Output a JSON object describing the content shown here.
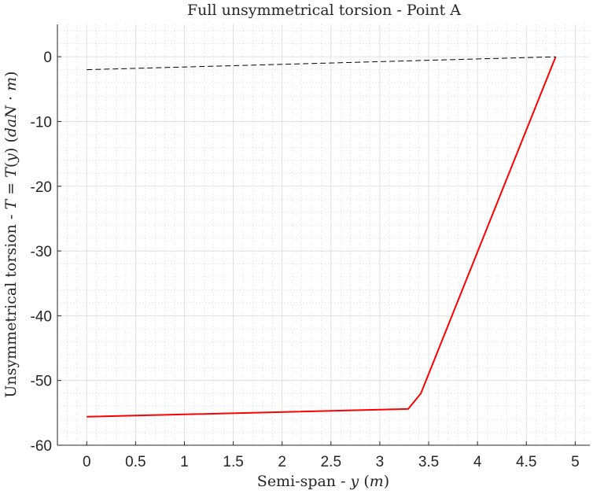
{
  "chart_data": {
    "type": "line",
    "title": "Full unsymmetrical torsion - Point A",
    "xlabel": "Semi-span - y (m)",
    "ylabel": "Unsymmetrical torsion - T = T(y) (daN · m)",
    "xlim": [
      -0.3,
      5.15
    ],
    "ylim": [
      -60,
      5
    ],
    "xticks": [
      0,
      0.5,
      1,
      1.5,
      2,
      2.5,
      3,
      3.5,
      4,
      4.5,
      5
    ],
    "xtick_labels": [
      "0",
      "0.5",
      "1",
      "1.5",
      "2",
      "2.5",
      "3",
      "3.5",
      "4",
      "4.5",
      "5"
    ],
    "yticks": [
      0,
      -10,
      -20,
      -30,
      -40,
      -50,
      -60
    ],
    "ytick_labels": [
      "0",
      "-10",
      "-20",
      "-30",
      "-40",
      "-50",
      "-60"
    ],
    "grid": true,
    "minor_grid": true,
    "series": [
      {
        "style": "solid",
        "color": "#ff0000",
        "x": [
          0,
          3.29,
          3.42,
          4.8
        ],
        "y": [
          -55.6,
          -54.4,
          -52.0,
          0
        ]
      },
      {
        "style": "dashed",
        "color": "#000000",
        "x": [
          0,
          4.8
        ],
        "y": [
          -2.0,
          0
        ]
      }
    ]
  }
}
